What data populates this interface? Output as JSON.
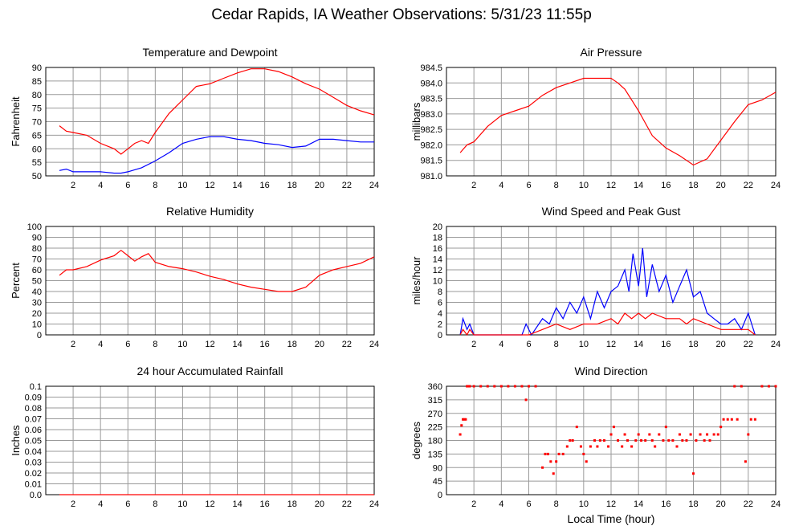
{
  "page": {
    "title": "Cedar Rapids, IA Weather Observations: 5/31/23 11:55p"
  },
  "xlabel": "Local Time (hour)",
  "colors": {
    "red": "#ff0000",
    "blue": "#0000ff",
    "grid": "#9a9a9a"
  },
  "chart_data": [
    {
      "id": "temp",
      "type": "line",
      "title": "Temperature and Dewpoint",
      "ylabel": "Fahrenheit",
      "xlim": [
        0,
        24
      ],
      "ylim": [
        50,
        90
      ],
      "xticks": [
        2,
        4,
        6,
        8,
        10,
        12,
        14,
        16,
        18,
        20,
        22,
        24
      ],
      "yticks": [
        50,
        55,
        60,
        65,
        70,
        75,
        80,
        85,
        90
      ],
      "grid": true,
      "series": [
        {
          "color": "#ff0000",
          "x": [
            1,
            1.5,
            2,
            3,
            4,
            5,
            5.5,
            6,
            6.5,
            7,
            7.5,
            8,
            9,
            10,
            11,
            12,
            13,
            14,
            15,
            16,
            17,
            18,
            19,
            20,
            21,
            22,
            23,
            24
          ],
          "y": [
            68.5,
            66.5,
            66,
            65,
            62,
            60,
            58,
            60,
            62,
            63,
            62,
            66,
            73,
            78,
            83,
            84,
            86,
            88,
            89.5,
            89.5,
            88.5,
            86.5,
            84,
            82,
            79,
            76,
            74,
            72.5
          ]
        },
        {
          "color": "#0000ff",
          "x": [
            1,
            1.5,
            2,
            3,
            4,
            5,
            5.5,
            6,
            7,
            8,
            9,
            10,
            11,
            12,
            13,
            14,
            15,
            16,
            17,
            18,
            19,
            20,
            21,
            22,
            23,
            24
          ],
          "y": [
            52,
            52.5,
            51.5,
            51.5,
            51.5,
            51,
            51,
            51.5,
            53,
            55.5,
            58.5,
            62,
            63.5,
            64.5,
            64.5,
            63.5,
            63,
            62,
            61.5,
            60.5,
            61,
            63.5,
            63.5,
            63,
            62.5,
            62.5
          ]
        }
      ]
    },
    {
      "id": "pressure",
      "type": "line",
      "title": "Air Pressure",
      "ylabel": "millibars",
      "xlim": [
        0,
        24
      ],
      "ylim": [
        981.0,
        984.5
      ],
      "xticks": [
        2,
        4,
        6,
        8,
        10,
        12,
        14,
        16,
        18,
        20,
        22,
        24
      ],
      "yticks": [
        "981.0",
        "981.5",
        "982.0",
        "982.5",
        "983.0",
        "983.5",
        "984.0",
        "984.5"
      ],
      "grid": true,
      "series": [
        {
          "color": "#ff0000",
          "x": [
            1,
            1.5,
            2,
            3,
            4,
            5,
            6,
            7,
            8,
            9,
            10,
            11,
            12,
            12.5,
            13,
            14,
            15,
            16,
            17,
            18,
            19,
            20,
            21,
            22,
            23,
            24
          ],
          "y": [
            981.75,
            982.0,
            982.1,
            982.6,
            982.95,
            983.1,
            983.25,
            983.6,
            983.85,
            984.0,
            984.15,
            984.15,
            984.15,
            984.0,
            983.8,
            983.1,
            982.3,
            981.9,
            981.65,
            981.35,
            981.55,
            982.15,
            982.75,
            983.3,
            983.45,
            983.7
          ]
        }
      ]
    },
    {
      "id": "rh",
      "type": "line",
      "title": "Relative Humidity",
      "ylabel": "Percent",
      "xlim": [
        0,
        24
      ],
      "ylim": [
        0,
        100
      ],
      "xticks": [
        2,
        4,
        6,
        8,
        10,
        12,
        14,
        16,
        18,
        20,
        22,
        24
      ],
      "yticks": [
        0,
        10,
        20,
        30,
        40,
        50,
        60,
        70,
        80,
        90,
        100
      ],
      "grid": true,
      "series": [
        {
          "color": "#ff0000",
          "x": [
            1,
            1.5,
            2,
            3,
            4,
            5,
            5.5,
            6,
            6.5,
            7,
            7.5,
            8,
            9,
            10,
            11,
            12,
            13,
            14,
            15,
            16,
            17,
            18,
            19,
            20,
            21,
            22,
            23,
            24
          ],
          "y": [
            55,
            60,
            60,
            63,
            69,
            73,
            78,
            73,
            68,
            72,
            75,
            67,
            63,
            61,
            58,
            54,
            51,
            47,
            44,
            42,
            40,
            40,
            44,
            55,
            60,
            63,
            66,
            72
          ]
        }
      ]
    },
    {
      "id": "wind",
      "type": "line",
      "title": "Wind Speed and Peak Gust",
      "ylabel": "miles/hour",
      "xlim": [
        0,
        24
      ],
      "ylim": [
        0,
        20
      ],
      "xticks": [
        2,
        4,
        6,
        8,
        10,
        12,
        14,
        16,
        18,
        20,
        22,
        24
      ],
      "yticks": [
        0,
        2,
        4,
        6,
        8,
        10,
        12,
        14,
        16,
        18,
        20
      ],
      "grid": true,
      "series": [
        {
          "color": "#0000ff",
          "x": [
            1,
            1.2,
            1.5,
            1.7,
            2,
            5.5,
            5.8,
            6.2,
            7,
            7.5,
            8,
            8.5,
            9,
            9.5,
            10,
            10.5,
            11,
            11.5,
            12,
            12.5,
            13,
            13.3,
            13.6,
            14,
            14.3,
            14.6,
            15,
            15.5,
            16,
            16.5,
            17,
            17.5,
            18,
            18.5,
            19,
            19.5,
            20,
            20.5,
            21,
            21.5,
            22,
            22.5
          ],
          "y": [
            0,
            3,
            1,
            2,
            0,
            0,
            2,
            0,
            3,
            2,
            5,
            3,
            6,
            4,
            7,
            3,
            8,
            5,
            8,
            9,
            12,
            8,
            15,
            9,
            16,
            7,
            13,
            8,
            11,
            6,
            9,
            12,
            7,
            8,
            4,
            3,
            2,
            2,
            3,
            1,
            4,
            0
          ]
        },
        {
          "color": "#ff0000",
          "x": [
            1,
            1.2,
            1.5,
            1.7,
            2,
            6,
            7,
            8,
            9,
            10,
            11,
            12,
            12.5,
            13,
            13.5,
            14,
            14.5,
            15,
            16,
            17,
            17.5,
            18,
            19,
            20,
            21,
            22,
            22.5
          ],
          "y": [
            0,
            1,
            0,
            1,
            0,
            0,
            1,
            2,
            1,
            2,
            2,
            3,
            2,
            4,
            3,
            4,
            3,
            4,
            3,
            3,
            2,
            3,
            2,
            1,
            1,
            1,
            0
          ]
        }
      ]
    },
    {
      "id": "rain",
      "type": "line",
      "title": "24 hour Accumulated Rainfall",
      "ylabel": "Inches",
      "xlim": [
        0,
        24
      ],
      "ylim": [
        0,
        0.1
      ],
      "xticks": [
        2,
        4,
        6,
        8,
        10,
        12,
        14,
        16,
        18,
        20,
        22,
        24
      ],
      "yticks": [
        "0.0",
        "0.01",
        "0.02",
        "0.03",
        "0.04",
        "0.05",
        "0.06",
        "0.07",
        "0.08",
        "0.09",
        "0.1"
      ],
      "grid": true,
      "series": [
        {
          "color": "#ff0000",
          "x": [
            1,
            24
          ],
          "y": [
            0,
            0
          ]
        }
      ]
    },
    {
      "id": "dir",
      "type": "scatter",
      "title": "Wind Direction",
      "ylabel": "degrees",
      "xlim": [
        0,
        24
      ],
      "ylim": [
        0,
        360
      ],
      "xticks": [
        2,
        4,
        6,
        8,
        10,
        12,
        14,
        16,
        18,
        20,
        22,
        24
      ],
      "yticks": [
        0,
        45,
        90,
        135,
        180,
        225,
        270,
        315,
        360
      ],
      "grid": true,
      "series": [
        {
          "color": "#ff0000",
          "x": [
            1,
            1.1,
            1.2,
            1.3,
            1.4,
            1.5,
            1.6,
            1.7,
            2.0,
            2.5,
            3.0,
            3.5,
            4.0,
            4.5,
            5.0,
            5.5,
            5.8,
            6.0,
            6.5,
            7.0,
            7.2,
            7.4,
            7.6,
            7.8,
            8.0,
            8.2,
            8.5,
            8.8,
            9.0,
            9.2,
            9.5,
            9.8,
            10.0,
            10.2,
            10.5,
            10.8,
            11.0,
            11.2,
            11.5,
            11.8,
            12.0,
            12.2,
            12.5,
            12.8,
            13.0,
            13.2,
            13.5,
            13.8,
            14.0,
            14.2,
            14.5,
            14.8,
            15.0,
            15.2,
            15.5,
            15.8,
            16.0,
            16.2,
            16.5,
            16.8,
            17.0,
            17.2,
            17.5,
            17.8,
            18.0,
            18.2,
            18.5,
            18.8,
            19.0,
            19.2,
            19.5,
            19.8,
            20.0,
            20.2,
            20.5,
            20.8,
            21.0,
            21.2,
            21.5,
            21.8,
            22.0,
            22.2,
            22.5,
            23.0,
            23.5,
            24.0
          ],
          "y": [
            200,
            230,
            250,
            250,
            250,
            360,
            360,
            360,
            360,
            360,
            360,
            360,
            360,
            360,
            360,
            360,
            315,
            360,
            360,
            90,
            135,
            135,
            110,
            70,
            110,
            135,
            135,
            160,
            180,
            180,
            225,
            160,
            135,
            110,
            160,
            180,
            160,
            180,
            180,
            160,
            200,
            225,
            180,
            160,
            200,
            180,
            160,
            180,
            200,
            180,
            180,
            200,
            180,
            160,
            200,
            180,
            225,
            180,
            180,
            160,
            200,
            180,
            180,
            200,
            70,
            180,
            200,
            180,
            200,
            180,
            200,
            200,
            225,
            250,
            250,
            250,
            360,
            250,
            360,
            110,
            200,
            250,
            250,
            360,
            360,
            360
          ]
        }
      ]
    }
  ]
}
